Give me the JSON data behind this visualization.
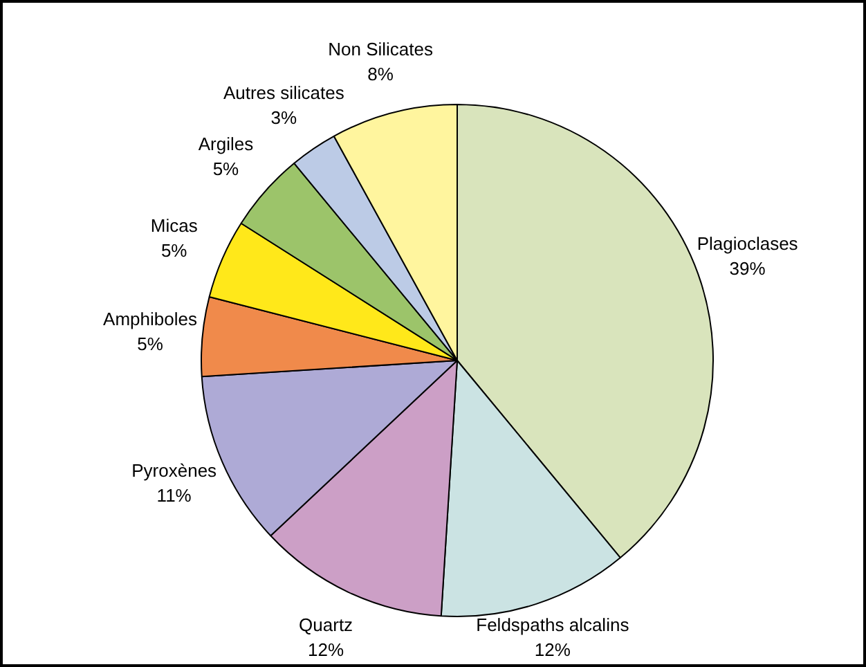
{
  "chart_data": {
    "type": "pie",
    "value_labels": [
      "39%",
      "12%",
      "12%",
      "11%",
      "5%",
      "5%",
      "5%",
      "3%",
      "8%"
    ],
    "categories": [
      "Plagioclases",
      "Feldspaths alcalins",
      "Quartz",
      "Pyroxènes",
      "Amphiboles",
      "Micas",
      "Argiles",
      "Autres silicates",
      "Non Silicates"
    ],
    "values": [
      39,
      12,
      12,
      11,
      5,
      5,
      5,
      3,
      8
    ],
    "colors": [
      "#d9e4bc",
      "#cbe3e3",
      "#cc9fc6",
      "#aeaad6",
      "#f08a4b",
      "#ffe81a",
      "#9cc46a",
      "#bccbe6",
      "#fff59e"
    ]
  }
}
